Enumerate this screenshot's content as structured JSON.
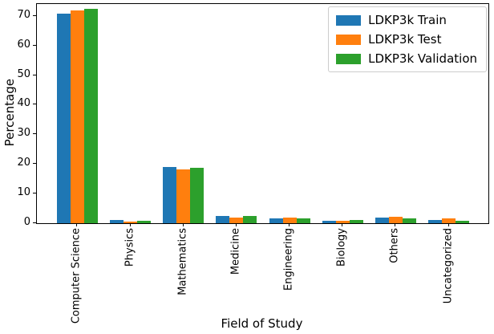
{
  "chart_data": {
    "type": "bar",
    "title": "",
    "xlabel": "Field of Study",
    "ylabel": "Percentage",
    "categories": [
      "Computer Science",
      "Physics",
      "Mathematics",
      "Medicine",
      "Engineering",
      "Biology",
      "Others",
      "Uncategorized"
    ],
    "series": [
      {
        "name": "LDKP3k Train",
        "color": "#1f77b4",
        "values": [
          70.8,
          1.1,
          18.9,
          2.4,
          1.7,
          0.9,
          1.9,
          1.1
        ]
      },
      {
        "name": "LDKP3k Test",
        "color": "#ff7f0e",
        "values": [
          71.9,
          0.6,
          18.3,
          1.9,
          1.9,
          0.9,
          2.1,
          1.7
        ]
      },
      {
        "name": "LDKP3k Validation",
        "color": "#2ca02c",
        "values": [
          72.3,
          0.7,
          18.6,
          2.4,
          1.5,
          1.0,
          1.6,
          0.9
        ]
      }
    ],
    "ylim": [
      0,
      74
    ],
    "yticks": [
      0,
      10,
      20,
      30,
      40,
      50,
      60,
      70
    ],
    "grid": false,
    "legend_position": "upper right",
    "xtick_rotation": 90
  },
  "colors": {
    "axis": "#000000",
    "legend_border": "#cccccc",
    "background": "#ffffff"
  }
}
